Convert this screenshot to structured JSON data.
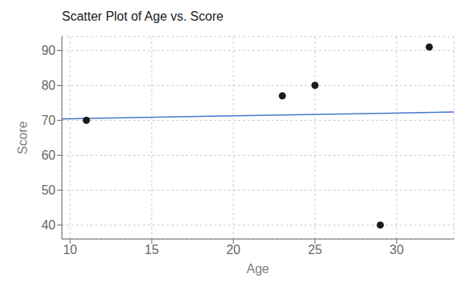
{
  "chart_data": {
    "type": "scatter",
    "title": "Scatter Plot of Age vs. Score",
    "xlabel": "Age",
    "ylabel": "Score",
    "xlim": [
      9.5,
      33.5
    ],
    "ylim": [
      36,
      94
    ],
    "xticks": [
      10,
      15,
      20,
      25,
      30
    ],
    "yticks": [
      40,
      50,
      60,
      70,
      80,
      90
    ],
    "grid": true,
    "series": [
      {
        "type": "line",
        "x": [
          9.5,
          33.5
        ],
        "values": [
          70.42884615384615,
          72.36730769230769
        ],
        "color": "#4477cc",
        "line_style": "solid"
      },
      {
        "type": "scatter",
        "x": [
          11,
          23,
          25,
          29,
          32
        ],
        "values": [
          70,
          77,
          80,
          40,
          91
        ],
        "color": "#1a1a1a",
        "marker": "circle"
      }
    ]
  }
}
